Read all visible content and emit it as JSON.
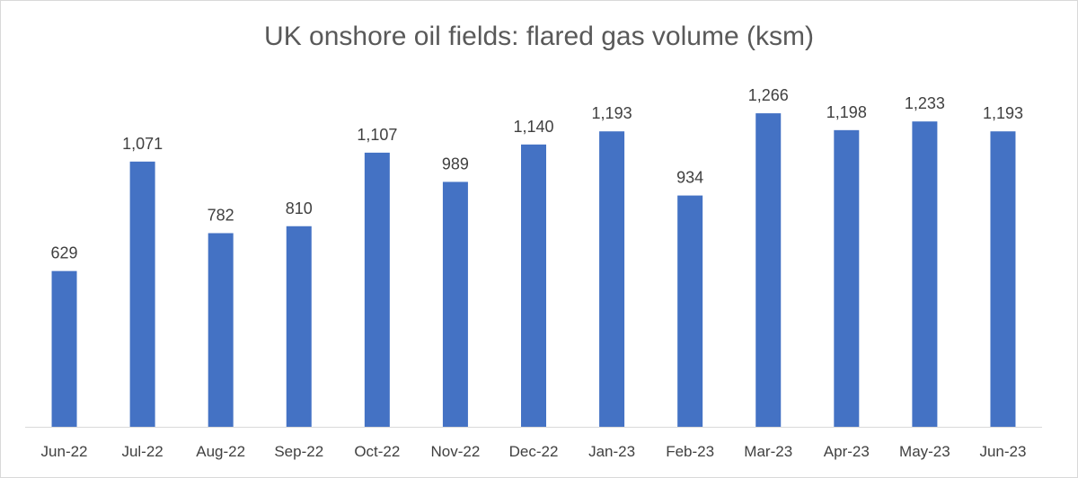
{
  "chart_data": {
    "type": "bar",
    "title": "UK onshore oil fields: flared gas volume (ksm)",
    "xlabel": "",
    "ylabel": "",
    "ylim": [
      0,
      1300
    ],
    "grid": false,
    "legend": "none",
    "categories": [
      "Jun-22",
      "Jul-22",
      "Aug-22",
      "Sep-22",
      "Oct-22",
      "Nov-22",
      "Dec-22",
      "Jan-23",
      "Feb-23",
      "Mar-23",
      "Apr-23",
      "May-23",
      "Jun-23"
    ],
    "values": [
      629,
      1071,
      782,
      810,
      1107,
      989,
      1140,
      1193,
      934,
      1266,
      1198,
      1233,
      1193
    ],
    "data_labels": [
      "629",
      "1,071",
      "782",
      "810",
      "1,107",
      "989",
      "1,140",
      "1,193",
      "934",
      "1,266",
      "1,198",
      "1,233",
      "1,193"
    ],
    "bar_color": "#4472c4",
    "axis_color": "#d9d9d9",
    "text_color": "#404040"
  }
}
